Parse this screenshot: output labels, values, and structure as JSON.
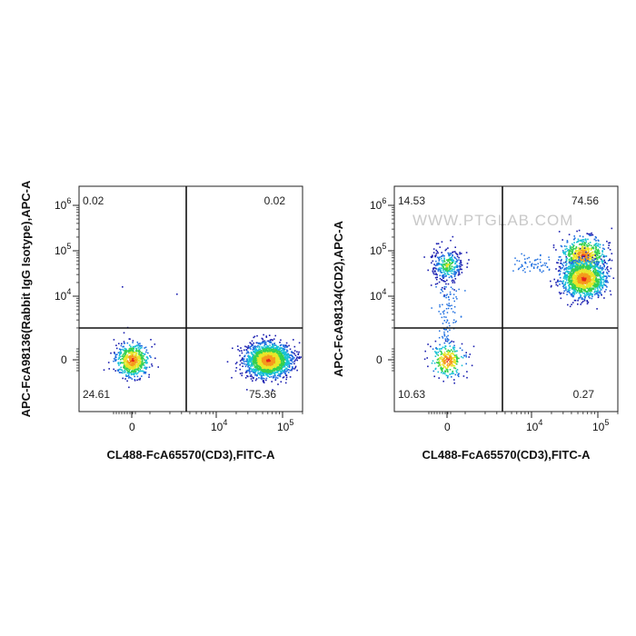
{
  "chart_data": [
    {
      "type": "scatter",
      "subtype": "flow-cytometry-density-dot-plot",
      "xlabel": "CL488-FcA65570(CD3),FITC-A",
      "ylabel": "APC-FcA98136(Rabbit IgG Isotype),APC-A",
      "x_scale": "biexponential",
      "y_scale": "biexponential",
      "x_ticks": [
        {
          "base": "0",
          "exp": ""
        },
        {
          "base": "10",
          "exp": "4"
        },
        {
          "base": "10",
          "exp": "5"
        }
      ],
      "y_ticks": [
        {
          "base": "0",
          "exp": ""
        },
        {
          "base": "10",
          "exp": "4"
        },
        {
          "base": "10",
          "exp": "5"
        },
        {
          "base": "10",
          "exp": "6"
        }
      ],
      "quadrants": {
        "upper_left": "0.02",
        "upper_right": "0.02",
        "lower_left": "24.61",
        "lower_right": "75.36"
      },
      "gate": {
        "x": 5000,
        "y": 2000
      },
      "populations": [
        {
          "x_center": 0,
          "y_center": 0,
          "share": 0.2461,
          "density": "high"
        },
        {
          "x_center": 60000,
          "y_center": 0,
          "share": 0.7536,
          "density": "high"
        }
      ],
      "watermark": ""
    },
    {
      "type": "scatter",
      "subtype": "flow-cytometry-density-dot-plot",
      "xlabel": "CL488-FcA65570(CD3),FITC-A",
      "ylabel": "APC-FcA98134(CD2),APC-A",
      "x_scale": "biexponential",
      "y_scale": "biexponential",
      "x_ticks": [
        {
          "base": "0",
          "exp": ""
        },
        {
          "base": "10",
          "exp": "4"
        },
        {
          "base": "10",
          "exp": "5"
        }
      ],
      "y_ticks": [
        {
          "base": "0",
          "exp": ""
        },
        {
          "base": "10",
          "exp": "4"
        },
        {
          "base": "10",
          "exp": "5"
        },
        {
          "base": "10",
          "exp": "6"
        }
      ],
      "quadrants": {
        "upper_left": "14.53",
        "upper_right": "74.56",
        "lower_left": "10.63",
        "lower_right": "0.27"
      },
      "gate": {
        "x": 5000,
        "y": 2000
      },
      "populations": [
        {
          "x_center": 0,
          "y_center": 50000,
          "share": 0.12,
          "density": "medium"
        },
        {
          "x_center": 0,
          "y_center": 0,
          "share": 0.106,
          "density": "high"
        },
        {
          "x_center": 60000,
          "y_center": 80000,
          "share": 0.25,
          "density": "high"
        },
        {
          "x_center": 60000,
          "y_center": 25000,
          "share": 0.5,
          "density": "high"
        }
      ],
      "watermark": "WWW.PTGLAB.COM"
    }
  ],
  "colormap": [
    "#1b1fb0",
    "#1f6fe0",
    "#17c1d6",
    "#34d04f",
    "#e8e629",
    "#f59a1c",
    "#e5231b"
  ]
}
